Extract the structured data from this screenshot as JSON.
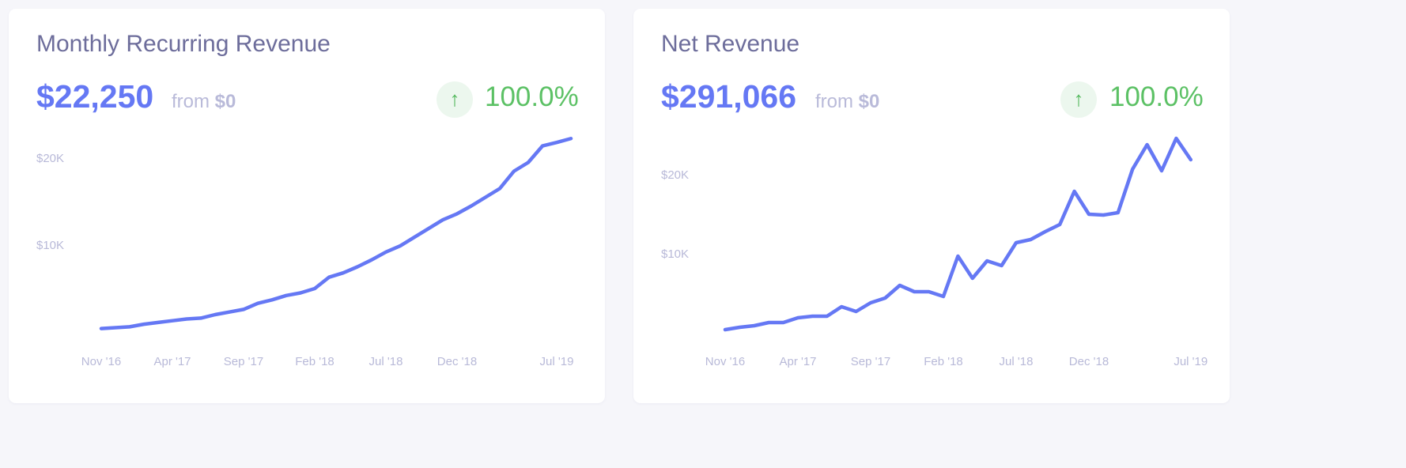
{
  "colors": {
    "line": "#6578f4",
    "up": "#5cc165",
    "badge_bg": "#ecf7ee",
    "label": "#b8b9d8",
    "title": "#6d6d9b"
  },
  "cards": [
    {
      "title": "Monthly Recurring Revenue",
      "value": "$22,250",
      "from_label": "from",
      "from_value": "$0",
      "change_icon": "arrow-up-icon",
      "change_arrow": "↑",
      "change": "100.0%"
    },
    {
      "title": "Net Revenue",
      "value": "$291,066",
      "from_label": "from",
      "from_value": "$0",
      "change_icon": "arrow-up-icon",
      "change_arrow": "↑",
      "change": "100.0%"
    }
  ],
  "chart_data": [
    {
      "type": "line",
      "title": "Monthly Recurring Revenue",
      "ylabel": "",
      "xlabel": "",
      "y_ticks": [
        {
          "value": 10000,
          "label": "$10K"
        },
        {
          "value": 20000,
          "label": "$20K"
        }
      ],
      "x_ticks": [
        {
          "index": 0,
          "label": "Nov '16"
        },
        {
          "index": 5,
          "label": "Apr '17"
        },
        {
          "index": 10,
          "label": "Sep '17"
        },
        {
          "index": 15,
          "label": "Feb '18"
        },
        {
          "index": 20,
          "label": "Jul '18"
        },
        {
          "index": 25,
          "label": "Dec '18"
        },
        {
          "index": 32,
          "label": "Jul '19"
        }
      ],
      "ylim": [
        0,
        23000
      ],
      "grid": false,
      "values": [
        400,
        500,
        600,
        900,
        1100,
        1300,
        1500,
        1600,
        2000,
        2300,
        2600,
        3300,
        3700,
        4200,
        4500,
        5000,
        6300,
        6800,
        7500,
        8300,
        9200,
        9900,
        10900,
        11900,
        12900,
        13600,
        14500,
        15500,
        16500,
        18500,
        19500,
        21400,
        21800,
        22250
      ]
    },
    {
      "type": "line",
      "title": "Net Revenue",
      "ylabel": "",
      "xlabel": "",
      "y_ticks": [
        {
          "value": 10000,
          "label": "$10K"
        },
        {
          "value": 20000,
          "label": "$20K"
        }
      ],
      "x_ticks": [
        {
          "index": 0,
          "label": "Nov '16"
        },
        {
          "index": 5,
          "label": "Apr '17"
        },
        {
          "index": 10,
          "label": "Sep '17"
        },
        {
          "index": 15,
          "label": "Feb '18"
        },
        {
          "index": 20,
          "label": "Jul '18"
        },
        {
          "index": 25,
          "label": "Dec '18"
        },
        {
          "index": 32,
          "label": "Jul '19"
        }
      ],
      "ylim": [
        0,
        25000
      ],
      "grid": false,
      "values": [
        400,
        700,
        900,
        1300,
        1300,
        1900,
        2100,
        2100,
        3300,
        2700,
        3800,
        4400,
        6000,
        5200,
        5200,
        4600,
        9700,
        6900,
        9100,
        8500,
        11400,
        11800,
        12800,
        13700,
        17900,
        15000,
        14900,
        15200,
        20700,
        23800,
        20500,
        24600,
        21900
      ]
    }
  ]
}
